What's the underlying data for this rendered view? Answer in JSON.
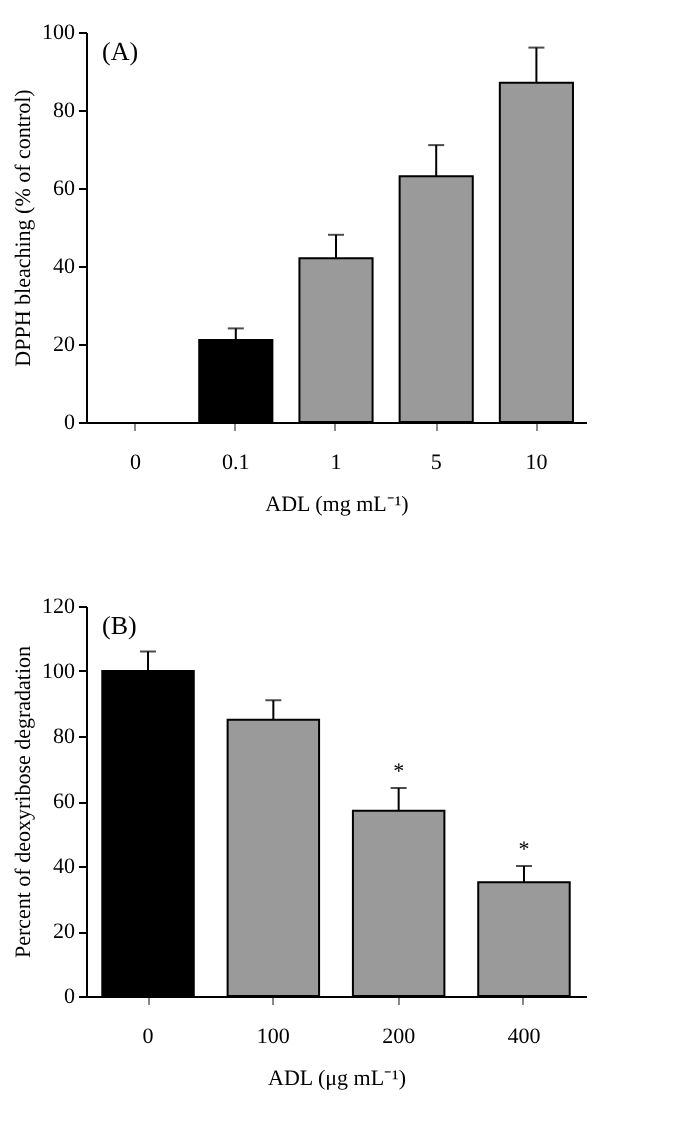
{
  "chart_data": [
    {
      "type": "bar",
      "title": "(A)",
      "xlabel": "ADL (mg mL⁻¹)",
      "ylabel": "DPPH bleaching (% of control)",
      "categories": [
        "0",
        "0.1",
        "1",
        "5",
        "10"
      ],
      "values": [
        null,
        21,
        42,
        63,
        87
      ],
      "errors": [
        null,
        3,
        6,
        8,
        9
      ],
      "colors": [
        "#9a9a9a",
        "#000000",
        "#9a9a9a",
        "#9a9a9a",
        "#9a9a9a"
      ],
      "ylim": [
        0,
        100
      ],
      "yticks": [
        0,
        20,
        40,
        60,
        80,
        100
      ],
      "grid": false
    },
    {
      "type": "bar",
      "title": "(B)",
      "xlabel": "ADL (μg mL⁻¹)",
      "ylabel": "Percent of deoxyribose degradation",
      "categories": [
        "0",
        "100",
        "200",
        "400"
      ],
      "values": [
        100,
        85,
        57,
        35
      ],
      "errors": [
        6,
        6,
        7,
        5
      ],
      "colors": [
        "#000000",
        "#9a9a9a",
        "#9a9a9a",
        "#9a9a9a"
      ],
      "ylim": [
        0,
        120
      ],
      "yticks": [
        0,
        20,
        40,
        60,
        80,
        100,
        120
      ],
      "grid": false,
      "annotations": [
        {
          "text": "*",
          "x": "200",
          "y": 64
        },
        {
          "text": "*",
          "x": "400",
          "y": 40
        }
      ]
    }
  ]
}
